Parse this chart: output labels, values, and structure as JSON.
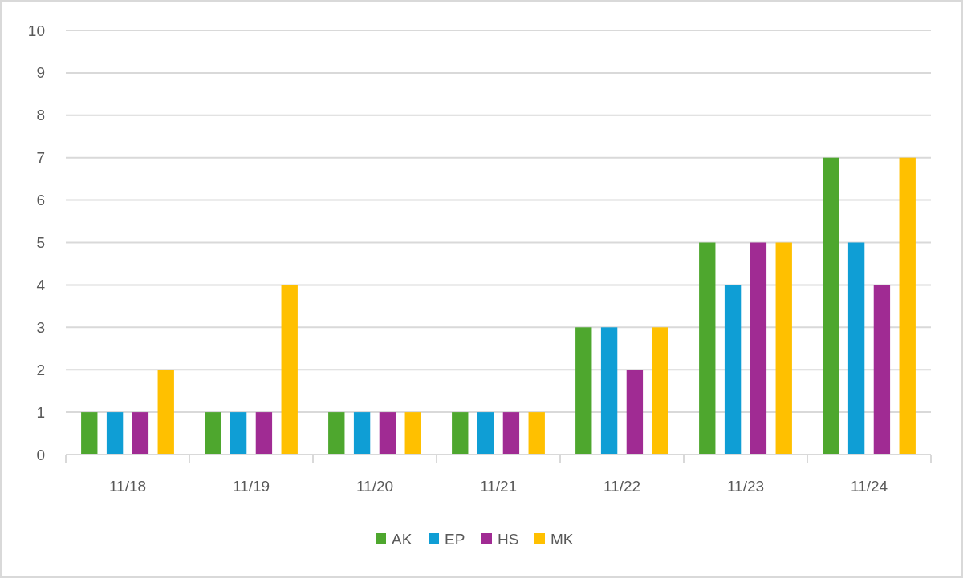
{
  "chart_data": {
    "type": "bar",
    "categories": [
      "11/18",
      "11/19",
      "11/20",
      "11/21",
      "11/22",
      "11/23",
      "11/24"
    ],
    "series": [
      {
        "name": "AK",
        "color": "#4ea72e",
        "values": [
          1,
          1,
          1,
          1,
          3,
          5,
          7
        ]
      },
      {
        "name": "EP",
        "color": "#0f9ed5",
        "values": [
          1,
          1,
          1,
          1,
          3,
          4,
          5
        ]
      },
      {
        "name": "HS",
        "color": "#a02b93",
        "values": [
          1,
          1,
          1,
          1,
          2,
          5,
          4
        ]
      },
      {
        "name": "MK",
        "color": "#ffc000",
        "values": [
          2,
          4,
          1,
          1,
          3,
          5,
          7
        ]
      }
    ],
    "ylim": [
      0,
      10
    ],
    "yticks": [
      0,
      1,
      2,
      3,
      4,
      5,
      6,
      7,
      8,
      9,
      10
    ],
    "grid": "y",
    "legend": "bottom"
  }
}
